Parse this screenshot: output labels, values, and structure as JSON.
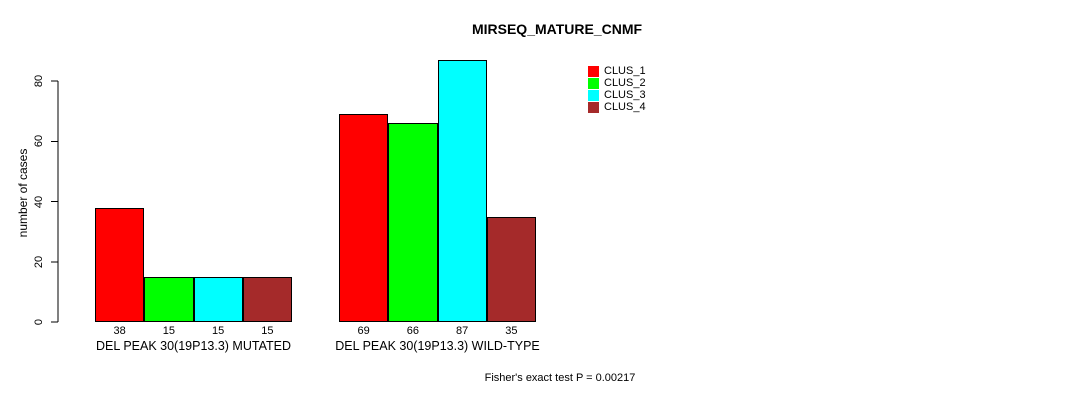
{
  "window": {
    "background": "#ffffff",
    "text_color": "#000000",
    "axis_color": "#000000"
  },
  "chart_data": {
    "type": "bar",
    "title": "MIRSEQ_MATURE_CNMF",
    "ylabel": "number of cases",
    "xlabel": "",
    "ylim": [
      0,
      80
    ],
    "yticks": [
      0,
      20,
      40,
      60,
      80
    ],
    "grid": false,
    "legend_position": "top-right-outside",
    "bar_border_color": "#000000",
    "show_value_labels": true,
    "categories": [
      "DEL PEAK 30(19P13.3) MUTATED",
      "DEL PEAK 30(19P13.3) WILD-TYPE"
    ],
    "series": [
      {
        "name": "CLUS_1",
        "color": "#ff0000",
        "values": [
          38,
          69
        ]
      },
      {
        "name": "CLUS_2",
        "color": "#00ff00",
        "values": [
          15,
          66
        ]
      },
      {
        "name": "CLUS_3",
        "color": "#00ffff",
        "values": [
          15,
          87
        ]
      },
      {
        "name": "CLUS_4",
        "color": "#a52a2a",
        "values": [
          15,
          35
        ]
      }
    ],
    "annotation": "Fisher's exact test P = 0.00217"
  }
}
